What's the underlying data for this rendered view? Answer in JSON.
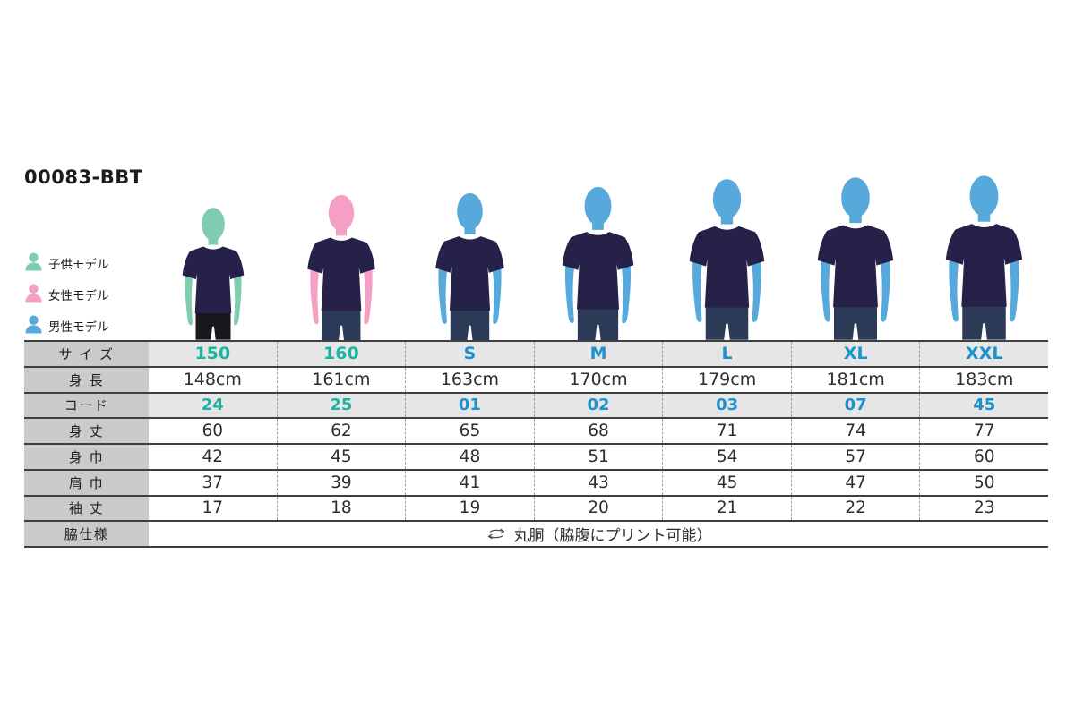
{
  "title": "00083-BBT",
  "legend": {
    "items": [
      {
        "label": "子供モデル",
        "color": "#7fccb1"
      },
      {
        "label": "女性モデル",
        "color": "#f49fc3"
      },
      {
        "label": "男性モデル",
        "color": "#57a9db"
      }
    ]
  },
  "models": [
    {
      "size": "150",
      "type": "child",
      "height_cm": 148,
      "skin_color": "#7fccb1",
      "shirt_color": "#262148",
      "pants_color": "#17171d"
    },
    {
      "size": "160",
      "type": "female",
      "height_cm": 161,
      "skin_color": "#f49fc3",
      "shirt_color": "#262148",
      "pants_color": "#2b3a57"
    },
    {
      "size": "S",
      "type": "male",
      "height_cm": 163,
      "skin_color": "#57a9db",
      "shirt_color": "#262148",
      "pants_color": "#2b3a57"
    },
    {
      "size": "M",
      "type": "male",
      "height_cm": 170,
      "skin_color": "#57a9db",
      "shirt_color": "#262148",
      "pants_color": "#2b3a57"
    },
    {
      "size": "L",
      "type": "male",
      "height_cm": 179,
      "skin_color": "#57a9db",
      "shirt_color": "#262148",
      "pants_color": "#2b3a57"
    },
    {
      "size": "XL",
      "type": "male",
      "height_cm": 181,
      "skin_color": "#57a9db",
      "shirt_color": "#262148",
      "pants_color": "#2b3a57"
    },
    {
      "size": "XXL",
      "type": "male",
      "height_cm": 183,
      "skin_color": "#57a9db",
      "shirt_color": "#262148",
      "pants_color": "#2b3a57"
    }
  ],
  "table": {
    "row_labels": [
      "サ イ ズ",
      "身 長",
      "コード",
      "身 丈",
      "身 巾",
      "肩 巾",
      "袖 丈",
      "脇仕様"
    ],
    "columns": [
      {
        "size": "150",
        "accent": "teal",
        "height": "148cm",
        "code": "24",
        "body_length": "60",
        "body_width": "42",
        "shoulder_width": "37",
        "sleeve_length": "17"
      },
      {
        "size": "160",
        "accent": "teal",
        "height": "161cm",
        "code": "25",
        "body_length": "62",
        "body_width": "45",
        "shoulder_width": "39",
        "sleeve_length": "18"
      },
      {
        "size": "S",
        "accent": "blue",
        "height": "163cm",
        "code": "01",
        "body_length": "65",
        "body_width": "48",
        "shoulder_width": "41",
        "sleeve_length": "19"
      },
      {
        "size": "M",
        "accent": "blue",
        "height": "170cm",
        "code": "02",
        "body_length": "68",
        "body_width": "51",
        "shoulder_width": "43",
        "sleeve_length": "20"
      },
      {
        "size": "L",
        "accent": "blue",
        "height": "179cm",
        "code": "03",
        "body_length": "71",
        "body_width": "54",
        "shoulder_width": "45",
        "sleeve_length": "21"
      },
      {
        "size": "XL",
        "accent": "blue",
        "height": "181cm",
        "code": "07",
        "body_length": "74",
        "body_width": "57",
        "shoulder_width": "47",
        "sleeve_length": "22"
      },
      {
        "size": "XXL",
        "accent": "blue",
        "height": "183cm",
        "code": "45",
        "body_length": "77",
        "body_width": "60",
        "shoulder_width": "50",
        "sleeve_length": "23"
      }
    ],
    "side_spec": "丸胴（脇腹にプリント可能）"
  },
  "chart_data": {
    "type": "table",
    "title": "00083-BBT",
    "columns": [
      "サイズ",
      "150",
      "160",
      "S",
      "M",
      "L",
      "XL",
      "XXL"
    ],
    "rows": [
      [
        "身長",
        "148cm",
        "161cm",
        "163cm",
        "170cm",
        "179cm",
        "181cm",
        "183cm"
      ],
      [
        "コード",
        "24",
        "25",
        "01",
        "02",
        "03",
        "07",
        "45"
      ],
      [
        "身丈",
        "60",
        "62",
        "65",
        "68",
        "71",
        "74",
        "77"
      ],
      [
        "身巾",
        "42",
        "45",
        "48",
        "51",
        "54",
        "57",
        "60"
      ],
      [
        "肩巾",
        "37",
        "39",
        "41",
        "43",
        "45",
        "47",
        "50"
      ],
      [
        "袖丈",
        "17",
        "18",
        "19",
        "20",
        "21",
        "22",
        "23"
      ],
      [
        "脇仕様",
        "丸胴（脇腹にプリント可能）"
      ]
    ],
    "legend": [
      "子供モデル",
      "女性モデル",
      "男性モデル"
    ]
  },
  "theme": {
    "teal_accent": "#1cb3a1",
    "blue_accent": "#1b92d0",
    "label_bg": "#c9caca",
    "row_bg": "#e6e6e7",
    "line_dark": "#3f3f3f",
    "dash_line": "#a0a0a0"
  }
}
